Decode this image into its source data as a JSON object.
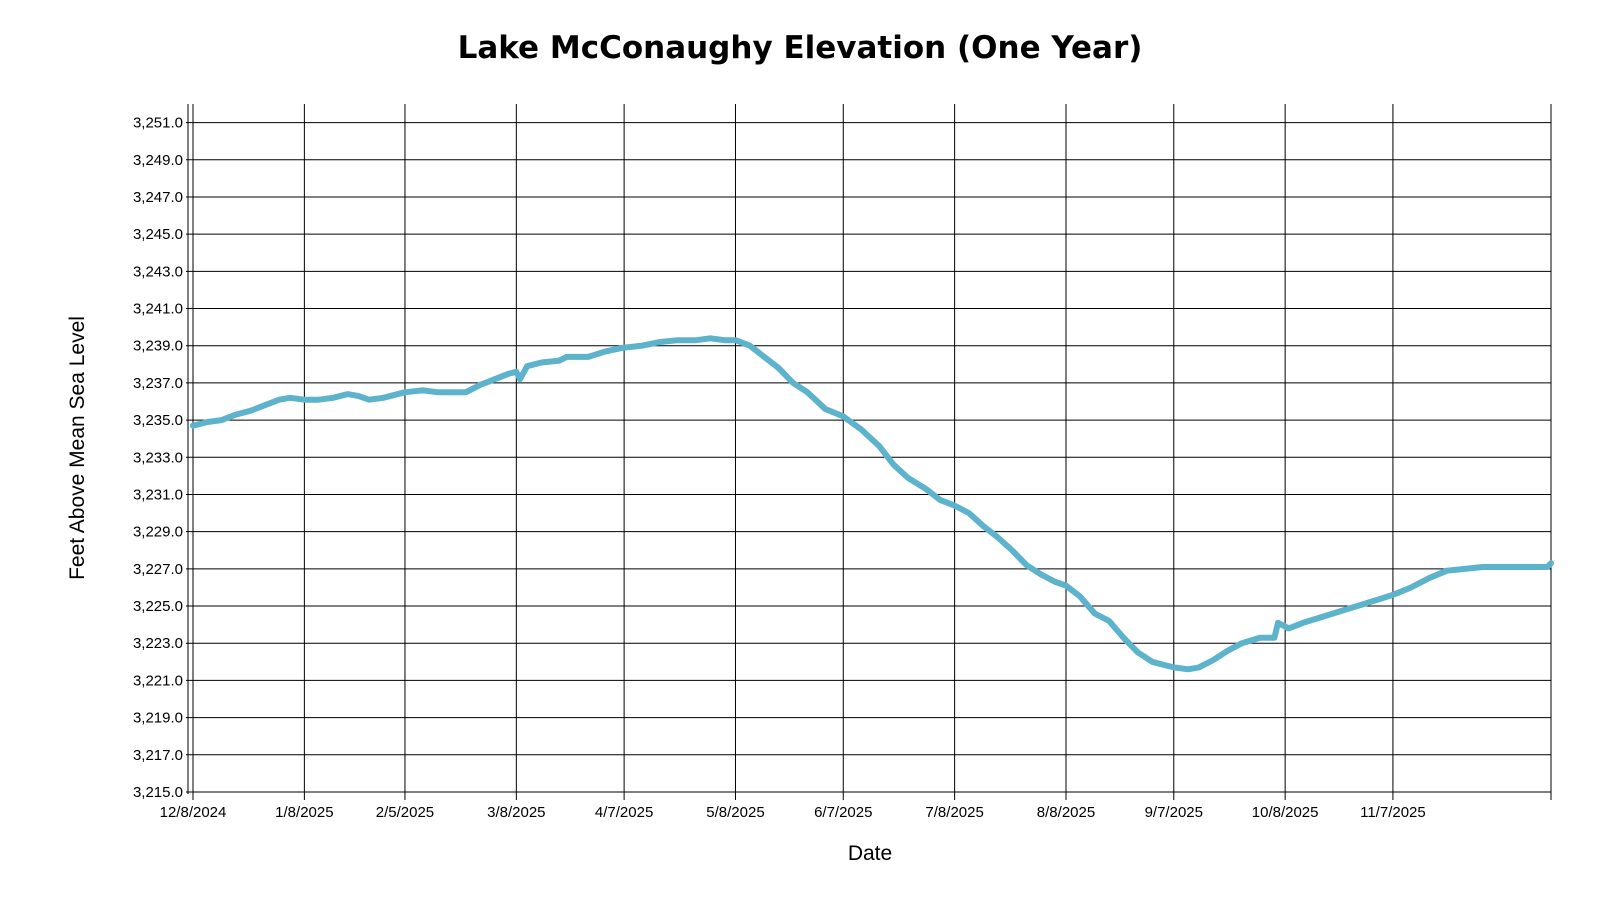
{
  "chart_data": {
    "type": "line",
    "title": "Lake McConaughy Elevation (One Year)",
    "xlabel": "Date",
    "ylabel": "Feet Above Mean Sea Level",
    "xlim": [
      "2024-12-08",
      "2025-12-21"
    ],
    "ylim": [
      3215,
      3252
    ],
    "grid": true,
    "line_color": "#5eb3cc",
    "x_ticks": [
      {
        "date": "2024-12-08",
        "label": "12/8/2024"
      },
      {
        "date": "2025-01-08",
        "label": "1/8/2025"
      },
      {
        "date": "2025-02-05",
        "label": "2/5/2025"
      },
      {
        "date": "2025-03-08",
        "label": "3/8/2025"
      },
      {
        "date": "2025-04-07",
        "label": "4/7/2025"
      },
      {
        "date": "2025-05-08",
        "label": "5/8/2025"
      },
      {
        "date": "2025-06-07",
        "label": "6/7/2025"
      },
      {
        "date": "2025-07-08",
        "label": "7/8/2025"
      },
      {
        "date": "2025-08-08",
        "label": "8/8/2025"
      },
      {
        "date": "2025-09-07",
        "label": "9/7/2025"
      },
      {
        "date": "2025-10-08",
        "label": "10/8/2025"
      },
      {
        "date": "2025-11-07",
        "label": "11/7/2025"
      },
      {
        "date": "2025-12-21",
        "label": ""
      }
    ],
    "y_ticks": [
      {
        "value": 3215,
        "label": "3,215.0"
      },
      {
        "value": 3217,
        "label": "3,217.0"
      },
      {
        "value": 3219,
        "label": "3,219.0"
      },
      {
        "value": 3221,
        "label": "3,221.0"
      },
      {
        "value": 3223,
        "label": "3,223.0"
      },
      {
        "value": 3225,
        "label": "3,225.0"
      },
      {
        "value": 3227,
        "label": "3,227.0"
      },
      {
        "value": 3229,
        "label": "3,229.0"
      },
      {
        "value": 3231,
        "label": "3,231.0"
      },
      {
        "value": 3233,
        "label": "3,233.0"
      },
      {
        "value": 3235,
        "label": "3,235.0"
      },
      {
        "value": 3237,
        "label": "3,237.0"
      },
      {
        "value": 3239,
        "label": "3,239.0"
      },
      {
        "value": 3241,
        "label": "3,241.0"
      },
      {
        "value": 3243,
        "label": "3,243.0"
      },
      {
        "value": 3245,
        "label": "3,245.0"
      },
      {
        "value": 3247,
        "label": "3,247.0"
      },
      {
        "value": 3249,
        "label": "3,249.0"
      },
      {
        "value": 3251,
        "label": "3,251.0"
      }
    ],
    "series": [
      {
        "points": [
          [
            "2024-12-08",
            3234.7
          ],
          [
            "2024-12-12",
            3234.9
          ],
          [
            "2024-12-16",
            3235.0
          ],
          [
            "2024-12-20",
            3235.3
          ],
          [
            "2024-12-24",
            3235.5
          ],
          [
            "2024-12-28",
            3235.8
          ],
          [
            "2025-01-01",
            3236.1
          ],
          [
            "2025-01-04",
            3236.2
          ],
          [
            "2025-01-08",
            3236.1
          ],
          [
            "2025-01-12",
            3236.1
          ],
          [
            "2025-01-16",
            3236.2
          ],
          [
            "2025-01-20",
            3236.4
          ],
          [
            "2025-01-23",
            3236.3
          ],
          [
            "2025-01-26",
            3236.1
          ],
          [
            "2025-01-30",
            3236.2
          ],
          [
            "2025-02-05",
            3236.5
          ],
          [
            "2025-02-10",
            3236.6
          ],
          [
            "2025-02-14",
            3236.5
          ],
          [
            "2025-02-18",
            3236.5
          ],
          [
            "2025-02-22",
            3236.5
          ],
          [
            "2025-02-26",
            3236.9
          ],
          [
            "2025-03-02",
            3237.2
          ],
          [
            "2025-03-06",
            3237.5
          ],
          [
            "2025-03-08",
            3237.6
          ],
          [
            "2025-03-09",
            3237.2
          ],
          [
            "2025-03-11",
            3237.9
          ],
          [
            "2025-03-15",
            3238.1
          ],
          [
            "2025-03-20",
            3238.2
          ],
          [
            "2025-03-22",
            3238.4
          ],
          [
            "2025-03-28",
            3238.4
          ],
          [
            "2025-04-02",
            3238.7
          ],
          [
            "2025-04-07",
            3238.9
          ],
          [
            "2025-04-12",
            3239.0
          ],
          [
            "2025-04-17",
            3239.2
          ],
          [
            "2025-04-22",
            3239.3
          ],
          [
            "2025-04-27",
            3239.3
          ],
          [
            "2025-05-01",
            3239.4
          ],
          [
            "2025-05-05",
            3239.3
          ],
          [
            "2025-05-08",
            3239.3
          ],
          [
            "2025-05-12",
            3239.0
          ],
          [
            "2025-05-16",
            3238.4
          ],
          [
            "2025-05-20",
            3237.8
          ],
          [
            "2025-05-24",
            3237.0
          ],
          [
            "2025-05-28",
            3236.5
          ],
          [
            "2025-06-02",
            3235.6
          ],
          [
            "2025-06-07",
            3235.2
          ],
          [
            "2025-06-12",
            3234.5
          ],
          [
            "2025-06-17",
            3233.6
          ],
          [
            "2025-06-21",
            3232.6
          ],
          [
            "2025-06-25",
            3231.9
          ],
          [
            "2025-06-30",
            3231.3
          ],
          [
            "2025-07-04",
            3230.7
          ],
          [
            "2025-07-08",
            3230.4
          ],
          [
            "2025-07-12",
            3230.0
          ],
          [
            "2025-07-16",
            3229.3
          ],
          [
            "2025-07-20",
            3228.7
          ],
          [
            "2025-07-24",
            3228.0
          ],
          [
            "2025-07-28",
            3227.2
          ],
          [
            "2025-08-01",
            3226.7
          ],
          [
            "2025-08-05",
            3226.3
          ],
          [
            "2025-08-08",
            3226.1
          ],
          [
            "2025-08-12",
            3225.5
          ],
          [
            "2025-08-16",
            3224.6
          ],
          [
            "2025-08-20",
            3224.2
          ],
          [
            "2025-08-24",
            3223.3
          ],
          [
            "2025-08-28",
            3222.5
          ],
          [
            "2025-09-01",
            3222.0
          ],
          [
            "2025-09-05",
            3221.8
          ],
          [
            "2025-09-07",
            3221.7
          ],
          [
            "2025-09-11",
            3221.6
          ],
          [
            "2025-09-14",
            3221.7
          ],
          [
            "2025-09-18",
            3222.1
          ],
          [
            "2025-09-22",
            3222.6
          ],
          [
            "2025-09-26",
            3223.0
          ],
          [
            "2025-10-01",
            3223.3
          ],
          [
            "2025-10-05",
            3223.3
          ],
          [
            "2025-10-06",
            3224.1
          ],
          [
            "2025-10-09",
            3223.8
          ],
          [
            "2025-10-13",
            3224.1
          ],
          [
            "2025-10-18",
            3224.4
          ],
          [
            "2025-10-23",
            3224.7
          ],
          [
            "2025-10-28",
            3225.0
          ],
          [
            "2025-11-02",
            3225.3
          ],
          [
            "2025-11-07",
            3225.6
          ],
          [
            "2025-11-12",
            3226.0
          ],
          [
            "2025-11-17",
            3226.5
          ],
          [
            "2025-11-22",
            3226.9
          ],
          [
            "2025-11-27",
            3227.0
          ],
          [
            "2025-12-02",
            3227.1
          ],
          [
            "2025-12-08",
            3227.1
          ],
          [
            "2025-12-14",
            3227.1
          ],
          [
            "2025-12-20",
            3227.1
          ],
          [
            "2025-12-21",
            3227.3
          ]
        ]
      }
    ]
  }
}
